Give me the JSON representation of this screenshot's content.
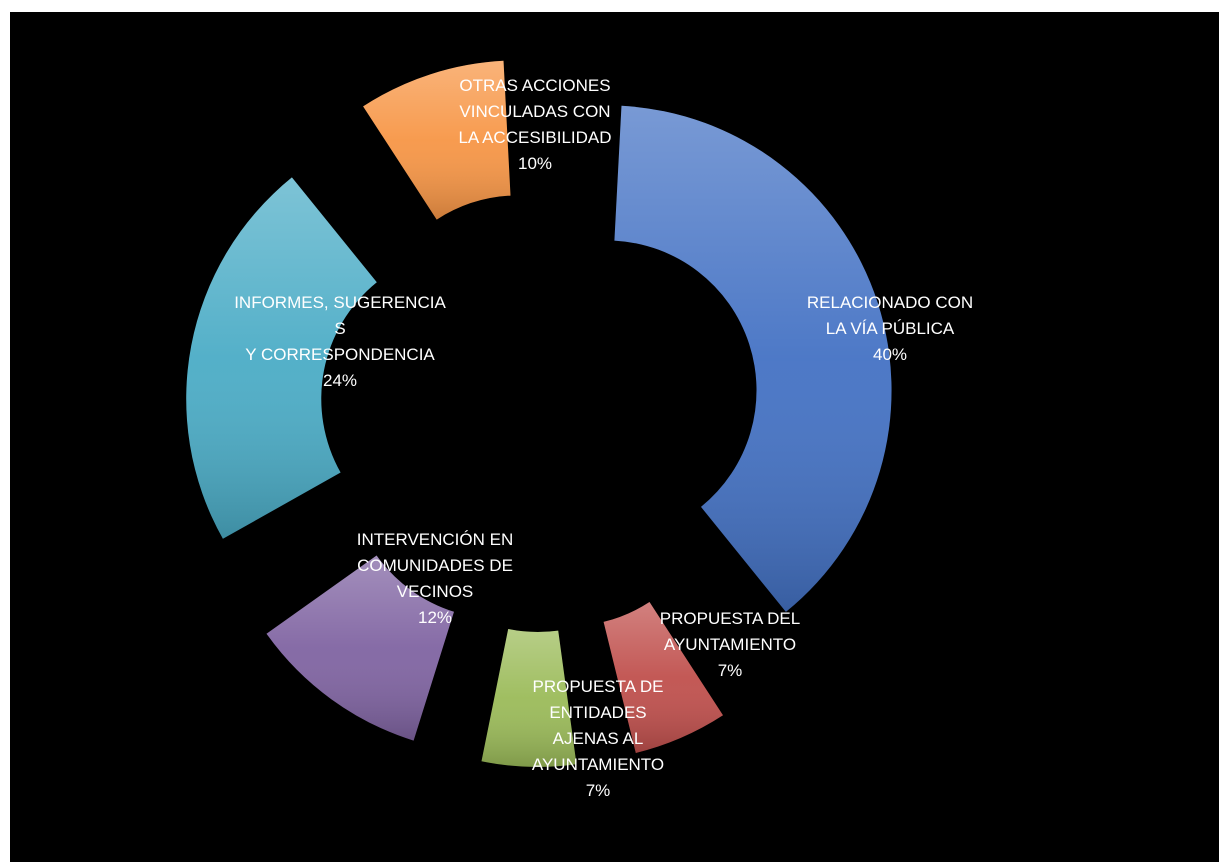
{
  "chart_data": {
    "type": "pie",
    "variant": "exploded-donut",
    "title": "",
    "legend": "none",
    "slices": [
      {
        "label_lines": [
          "RELACIONADO CON",
          "LA VÍA PÚBLICA",
          "40%"
        ],
        "value": 40,
        "color": "#4472C4"
      },
      {
        "label_lines": [
          "PROPUESTA DEL",
          "AYUNTAMIENTO",
          "7%"
        ],
        "value": 7,
        "color": "#C0504D"
      },
      {
        "label_lines": [
          "PROPUESTA DE",
          "ENTIDADES",
          "AJENAS AL",
          "AYUNTAMIENTO",
          "7%"
        ],
        "value": 7,
        "color": "#9BBB59"
      },
      {
        "label_lines": [
          "INTERVENCIÓN EN",
          "COMUNIDADES DE",
          "VECINOS",
          "12%"
        ],
        "value": 12,
        "color": "#8064A2"
      },
      {
        "label_lines": [
          "INFORMES, SUGERENCIA",
          "S",
          "Y CORRESPONDENCIA",
          "24%"
        ],
        "value": 24,
        "color": "#4BACC6"
      },
      {
        "label_lines": [
          "OTRAS ACCIONES",
          "VINCULADAS CON",
          "LA ACCESIBILIDAD",
          "10%"
        ],
        "value": 10,
        "color": "#F79646"
      }
    ]
  }
}
